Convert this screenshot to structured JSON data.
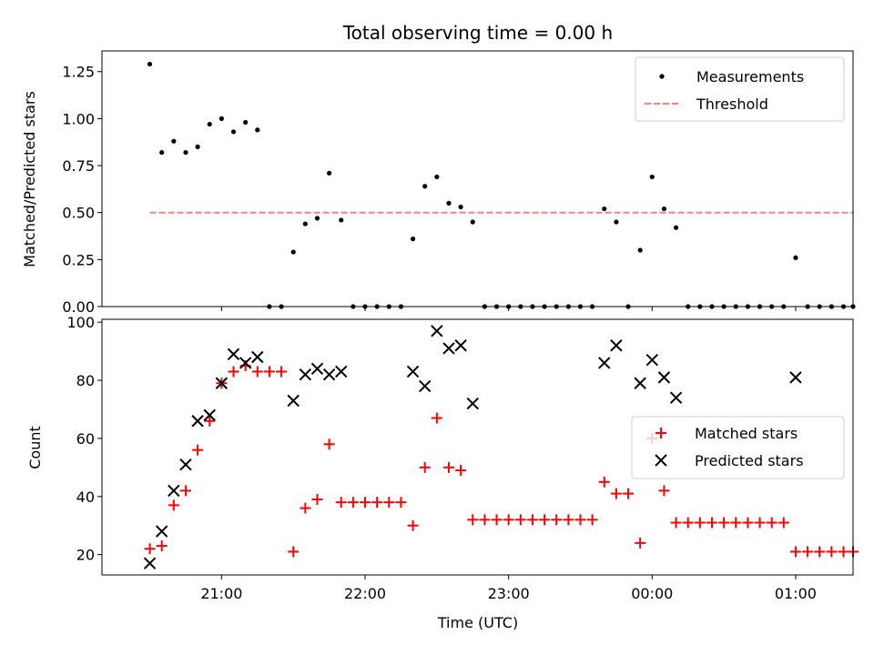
{
  "title": "Total observing time = 0.00 h",
  "chart_data": [
    {
      "type": "scatter",
      "ylabel": "Matched/Predicted stars",
      "ylim": [
        0,
        1.36
      ],
      "xlim": [
        "20:10",
        "01:24"
      ],
      "yticks": [
        "0.00",
        "0.25",
        "0.50",
        "0.75",
        "1.00",
        "1.25"
      ],
      "legend": {
        "placement": "top-right",
        "entries": [
          "Measurements",
          "Threshold"
        ]
      },
      "threshold": {
        "name": "Threshold",
        "y": 0.5,
        "x_start": "20:30",
        "x_end": "01:24",
        "color": "#ff7f7f"
      },
      "series": [
        {
          "name": "Measurements",
          "color": "#000000",
          "points": [
            [
              "20:30",
              1.29
            ],
            [
              "20:35",
              0.82
            ],
            [
              "20:40",
              0.88
            ],
            [
              "20:45",
              0.82
            ],
            [
              "20:50",
              0.85
            ],
            [
              "20:55",
              0.97
            ],
            [
              "21:00",
              1.0
            ],
            [
              "21:05",
              0.93
            ],
            [
              "21:10",
              0.98
            ],
            [
              "21:15",
              0.94
            ],
            [
              "21:20",
              0.0
            ],
            [
              "21:25",
              0.0
            ],
            [
              "21:30",
              0.29
            ],
            [
              "21:35",
              0.44
            ],
            [
              "21:40",
              0.47
            ],
            [
              "21:45",
              0.71
            ],
            [
              "21:50",
              0.46
            ],
            [
              "21:55",
              0.0
            ],
            [
              "22:00",
              0.0
            ],
            [
              "22:05",
              0.0
            ],
            [
              "22:10",
              0.0
            ],
            [
              "22:15",
              0.0
            ],
            [
              "22:20",
              0.36
            ],
            [
              "22:25",
              0.64
            ],
            [
              "22:30",
              0.69
            ],
            [
              "22:35",
              0.55
            ],
            [
              "22:40",
              0.53
            ],
            [
              "22:45",
              0.45
            ],
            [
              "22:50",
              0.0
            ],
            [
              "22:55",
              0.0
            ],
            [
              "23:00",
              0.0
            ],
            [
              "23:05",
              0.0
            ],
            [
              "23:10",
              0.0
            ],
            [
              "23:15",
              0.0
            ],
            [
              "23:20",
              0.0
            ],
            [
              "23:25",
              0.0
            ],
            [
              "23:30",
              0.0
            ],
            [
              "23:35",
              0.0
            ],
            [
              "23:40",
              0.52
            ],
            [
              "23:45",
              0.45
            ],
            [
              "23:50",
              0.0
            ],
            [
              "23:55",
              0.3
            ],
            [
              "00:00",
              0.69
            ],
            [
              "00:05",
              0.52
            ],
            [
              "00:10",
              0.42
            ],
            [
              "00:15",
              0.0
            ],
            [
              "00:20",
              0.0
            ],
            [
              "00:25",
              0.0
            ],
            [
              "00:30",
              0.0
            ],
            [
              "00:35",
              0.0
            ],
            [
              "00:40",
              0.0
            ],
            [
              "00:45",
              0.0
            ],
            [
              "00:50",
              0.0
            ],
            [
              "00:55",
              0.0
            ],
            [
              "01:00",
              0.26
            ],
            [
              "01:05",
              0.0
            ],
            [
              "01:10",
              0.0
            ],
            [
              "01:15",
              0.0
            ],
            [
              "01:20",
              0.0
            ],
            [
              "01:24",
              0.0
            ]
          ]
        }
      ]
    },
    {
      "type": "scatter",
      "ylabel": "Count",
      "xlabel": "Time (UTC)",
      "ylim": [
        13,
        101
      ],
      "xlim": [
        "20:10",
        "01:24"
      ],
      "yticks": [
        "20",
        "40",
        "60",
        "80",
        "100"
      ],
      "xticks": [
        "21:00",
        "22:00",
        "23:00",
        "00:00",
        "01:00"
      ],
      "legend": {
        "placement": "center-right",
        "entries": [
          "Matched stars",
          "Predicted stars"
        ]
      },
      "series": [
        {
          "name": "Matched stars",
          "color": "#ff0000",
          "marker": "plus",
          "points": [
            [
              "20:30",
              22
            ],
            [
              "20:35",
              23
            ],
            [
              "20:40",
              37
            ],
            [
              "20:45",
              42
            ],
            [
              "20:50",
              56
            ],
            [
              "20:55",
              66
            ],
            [
              "21:00",
              79
            ],
            [
              "21:05",
              83
            ],
            [
              "21:10",
              85
            ],
            [
              "21:15",
              83
            ],
            [
              "21:20",
              83
            ],
            [
              "21:25",
              83
            ],
            [
              "21:30",
              21
            ],
            [
              "21:35",
              36
            ],
            [
              "21:40",
              39
            ],
            [
              "21:45",
              58
            ],
            [
              "21:50",
              38
            ],
            [
              "21:55",
              38
            ],
            [
              "22:00",
              38
            ],
            [
              "22:05",
              38
            ],
            [
              "22:10",
              38
            ],
            [
              "22:15",
              38
            ],
            [
              "22:20",
              30
            ],
            [
              "22:25",
              50
            ],
            [
              "22:30",
              67
            ],
            [
              "22:35",
              50
            ],
            [
              "22:40",
              49
            ],
            [
              "22:45",
              32
            ],
            [
              "22:50",
              32
            ],
            [
              "22:55",
              32
            ],
            [
              "23:00",
              32
            ],
            [
              "23:05",
              32
            ],
            [
              "23:10",
              32
            ],
            [
              "23:15",
              32
            ],
            [
              "23:20",
              32
            ],
            [
              "23:25",
              32
            ],
            [
              "23:30",
              32
            ],
            [
              "23:35",
              32
            ],
            [
              "23:40",
              45
            ],
            [
              "23:45",
              41
            ],
            [
              "23:50",
              41
            ],
            [
              "23:55",
              24
            ],
            [
              "00:00",
              60
            ],
            [
              "00:05",
              42
            ],
            [
              "00:10",
              31
            ],
            [
              "00:15",
              31
            ],
            [
              "00:20",
              31
            ],
            [
              "00:25",
              31
            ],
            [
              "00:30",
              31
            ],
            [
              "00:35",
              31
            ],
            [
              "00:40",
              31
            ],
            [
              "00:45",
              31
            ],
            [
              "00:50",
              31
            ],
            [
              "00:55",
              31
            ],
            [
              "01:00",
              21
            ],
            [
              "01:05",
              21
            ],
            [
              "01:10",
              21
            ],
            [
              "01:15",
              21
            ],
            [
              "01:20",
              21
            ],
            [
              "01:24",
              21
            ]
          ]
        },
        {
          "name": "Predicted stars",
          "color": "#000000",
          "marker": "x",
          "points": [
            [
              "20:30",
              17
            ],
            [
              "20:35",
              28
            ],
            [
              "20:40",
              42
            ],
            [
              "20:45",
              51
            ],
            [
              "20:50",
              66
            ],
            [
              "20:55",
              68
            ],
            [
              "21:00",
              79
            ],
            [
              "21:05",
              89
            ],
            [
              "21:10",
              86
            ],
            [
              "21:15",
              88
            ],
            [
              "21:30",
              73
            ],
            [
              "21:35",
              82
            ],
            [
              "21:40",
              84
            ],
            [
              "21:45",
              82
            ],
            [
              "21:50",
              83
            ],
            [
              "22:20",
              83
            ],
            [
              "22:25",
              78
            ],
            [
              "22:30",
              97
            ],
            [
              "22:35",
              91
            ],
            [
              "22:40",
              92
            ],
            [
              "22:45",
              72
            ],
            [
              "23:40",
              86
            ],
            [
              "23:45",
              92
            ],
            [
              "23:55",
              79
            ],
            [
              "00:00",
              87
            ],
            [
              "00:05",
              81
            ],
            [
              "00:10",
              74
            ],
            [
              "01:00",
              81
            ]
          ]
        }
      ]
    }
  ]
}
